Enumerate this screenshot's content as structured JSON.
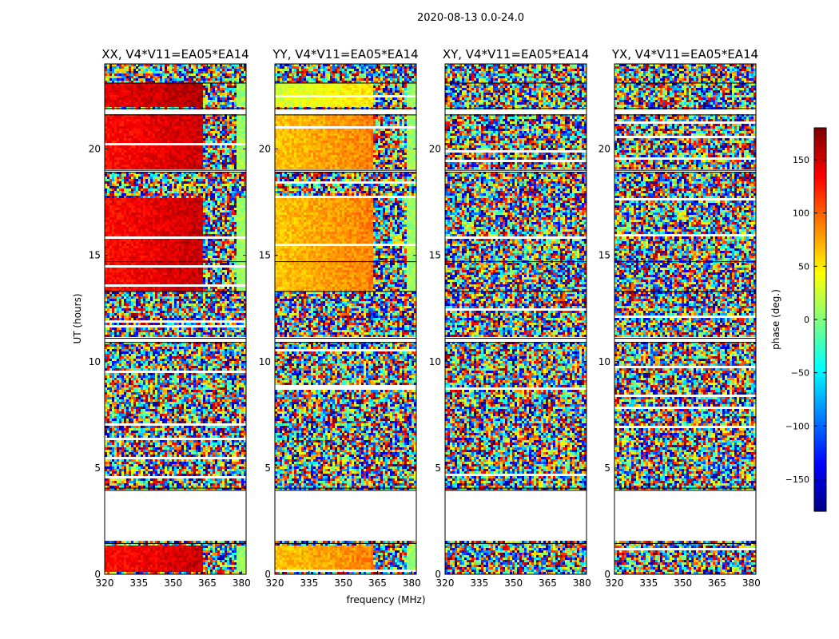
{
  "figure": {
    "suptitle": "2020-08-13 0.0-24.0"
  },
  "colors": {
    "colormap": "jet",
    "background": "#ffffff",
    "gap": "#ffffff",
    "flag_line": "#000000"
  },
  "chart_data": {
    "type": "heatmap",
    "xlabel": "frequency (MHz)",
    "ylabel": "UT (hours)",
    "xlim": [
      320,
      382
    ],
    "ylim": [
      0,
      24
    ],
    "xticks": [
      "320",
      "335",
      "350",
      "365",
      "380"
    ],
    "yticks": [
      "0",
      "5",
      "10",
      "15",
      "20"
    ],
    "panels": [
      {
        "title": "XX, V4*V11=EA05*EA14",
        "coherent_phase_deg": 140,
        "coherent_phase_deg_upper": 150
      },
      {
        "title": "YY, V4*V11=EA05*EA14",
        "coherent_phase_deg": 75,
        "coherent_phase_deg_upper": 40
      },
      {
        "title": "XY, V4*V11=EA05*EA14",
        "coherent_phase_deg": null,
        "coherent_phase_deg_upper": null
      },
      {
        "title": "YX, V4*V11=EA05*EA14",
        "coherent_phase_deg": null,
        "coherent_phase_deg_upper": null
      }
    ],
    "gaps_ut": [
      [
        1.6,
        3.9
      ],
      [
        21.6,
        21.9
      ],
      [
        18.9,
        19.0
      ],
      [
        10.9,
        11.1
      ]
    ],
    "strong_signal_ut": [
      [
        19.0,
        21.6
      ],
      [
        13.3,
        17.7
      ],
      [
        0.1,
        1.4
      ],
      [
        22.0,
        23.1
      ]
    ],
    "colorbar": {
      "label": "phase (deg.)",
      "range": [
        -180,
        180
      ],
      "ticks": [
        "150",
        "100",
        "50",
        "0",
        "−50",
        "−100",
        "−150"
      ],
      "tick_values": [
        150,
        100,
        50,
        0,
        -50,
        -100,
        -150
      ]
    }
  }
}
